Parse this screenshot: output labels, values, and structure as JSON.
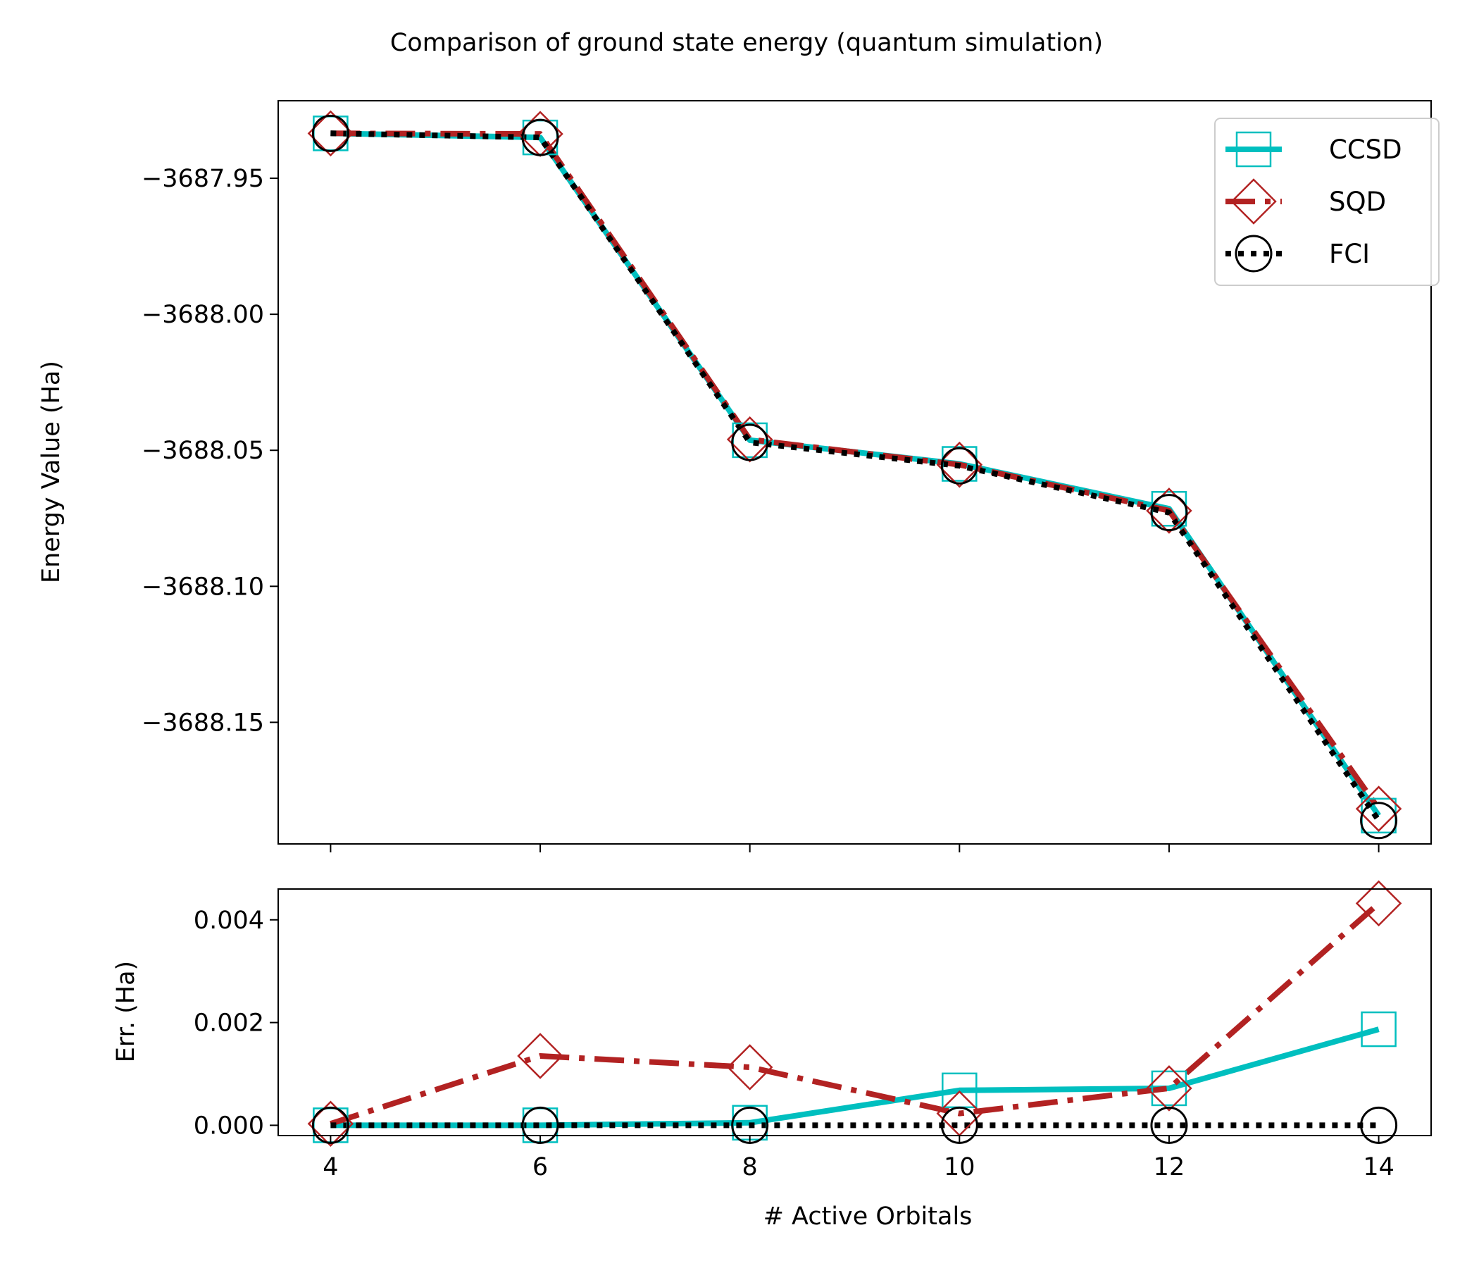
{
  "chart_data": [
    {
      "type": "line",
      "title": "Comparison of ground state energy (quantum simulation)",
      "xlabel": "",
      "ylabel": "Energy Value (Ha)",
      "x": [
        4,
        6,
        8,
        10,
        12,
        14
      ],
      "xlim": [
        3.5,
        14.5
      ],
      "ylim": [
        -3688.1947,
        -3687.9215
      ],
      "yticks": [
        -3687.95,
        -3688.0,
        -3688.05,
        -3688.1,
        -3688.15
      ],
      "yticklabels": [
        "−3687.95",
        "−3688.00",
        "−3688.05",
        "−3688.10",
        "−3688.15"
      ],
      "xtick_labels_shown": false,
      "grid": false,
      "legend_position": "top-right",
      "series": [
        {
          "name": "CCSD",
          "color": "#00BFBF",
          "linestyle": "solid",
          "marker": "square",
          "values": [
            -3687.9335,
            -3687.935,
            -3688.0463,
            -3688.055,
            -3688.0715,
            -3688.1843
          ]
        },
        {
          "name": "SQD",
          "color": "#B22222",
          "linestyle": "dashdot",
          "marker": "diamond",
          "values": [
            -3687.9335,
            -3687.9337,
            -3688.046,
            -3688.0553,
            -3688.0722,
            -3688.1818
          ]
        },
        {
          "name": "FCI",
          "color": "#000000",
          "linestyle": "dotted",
          "marker": "circle",
          "values": [
            -3687.9335,
            -3687.935,
            -3688.0471,
            -3688.0557,
            -3688.0729,
            -3688.1861
          ]
        }
      ]
    },
    {
      "type": "line",
      "title": "",
      "xlabel": "# Active Orbitals",
      "ylabel": "Err. (Ha)",
      "x": [
        4,
        6,
        8,
        10,
        12,
        14
      ],
      "xlim": [
        3.5,
        14.5
      ],
      "ylim": [
        -0.0002,
        0.0046
      ],
      "xticks": [
        4,
        6,
        8,
        10,
        12,
        14
      ],
      "xticklabels": [
        "4",
        "6",
        "8",
        "10",
        "12",
        "14"
      ],
      "yticks": [
        0.0,
        0.002,
        0.004
      ],
      "yticklabels": [
        "0.000",
        "0.002",
        "0.004"
      ],
      "grid": false,
      "series": [
        {
          "name": "CCSD",
          "color": "#00BFBF",
          "linestyle": "solid",
          "marker": "square",
          "values": [
            0.0,
            0.0,
            5e-05,
            0.00068,
            0.00072,
            0.00187
          ]
        },
        {
          "name": "SQD",
          "color": "#B22222",
          "linestyle": "dashdot",
          "marker": "diamond",
          "values": [
            3e-05,
            0.00135,
            0.00113,
            0.00023,
            0.00072,
            0.00432
          ]
        },
        {
          "name": "FCI",
          "color": "#000000",
          "linestyle": "dotted",
          "marker": "circle",
          "values": [
            0.0,
            0.0,
            0.0,
            0.0,
            0.0,
            0.0
          ]
        }
      ]
    }
  ]
}
